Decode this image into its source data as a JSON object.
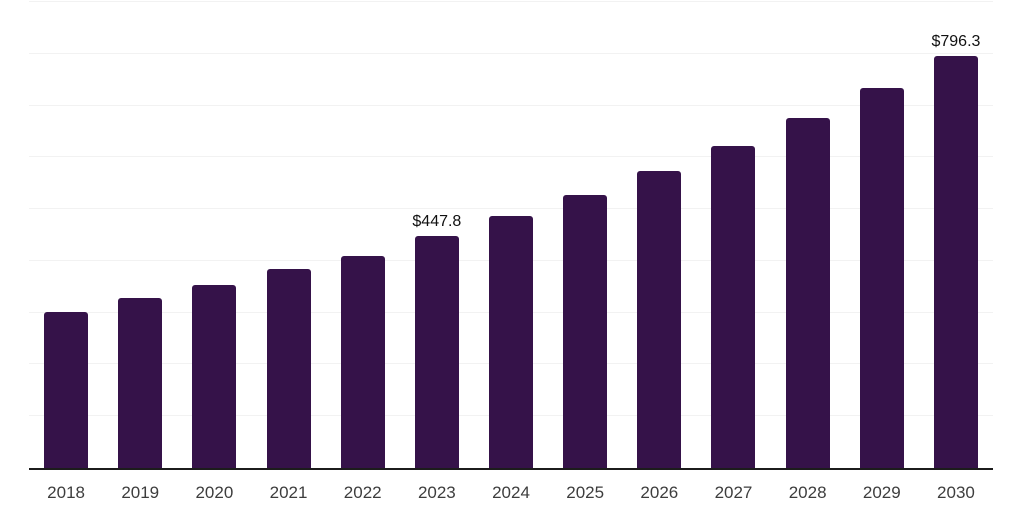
{
  "chart_data": {
    "type": "bar",
    "title": "",
    "xlabel": "",
    "ylabel": "",
    "categories": [
      "2018",
      "2019",
      "2020",
      "2021",
      "2022",
      "2023",
      "2024",
      "2025",
      "2026",
      "2027",
      "2028",
      "2029",
      "2030"
    ],
    "values": [
      300.5,
      327.5,
      353.0,
      384.0,
      409.5,
      447.8,
      486.2,
      527.9,
      573.2,
      622.3,
      675.7,
      733.6,
      796.3
    ],
    "labeled_points": [
      {
        "category": "2023",
        "label": "$447.8"
      },
      {
        "category": "2030",
        "label": "$796.3"
      }
    ],
    "value_prefix": "$",
    "ylim": [
      0,
      900
    ],
    "gridline_step": 100,
    "grid": true,
    "y_axis_tick_labels_visible": false,
    "legend": null,
    "colors": {
      "bar": "#351249",
      "gridline": "#f2f2f2",
      "axis": "#1c1c1c",
      "tick_label": "#3d3d3d",
      "value_label": "#111111",
      "background": "#ffffff"
    }
  }
}
